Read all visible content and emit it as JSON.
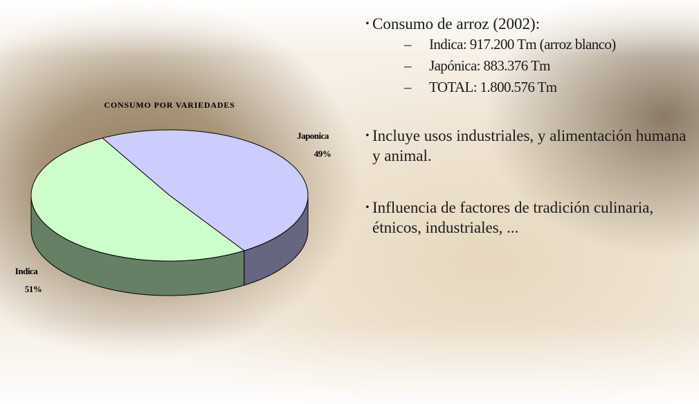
{
  "chart_data": {
    "type": "pie",
    "title": "CONSUMO POR VARIEDADES",
    "categories": [
      "Japonica",
      "Indica"
    ],
    "values": [
      49,
      51
    ],
    "value_labels": [
      "49%",
      "51%"
    ],
    "colors": [
      "#ccccff",
      "#ccffcc"
    ]
  },
  "slide": {
    "bullets": [
      {
        "text": "Consumo de arroz (2002):",
        "sub": [
          "Indica:  917.200 Tm (arroz blanco)",
          "Japónica:  883.376 Tm",
          "TOTAL:  1.800.576 Tm"
        ]
      },
      {
        "text": "Incluye usos industriales, y alimentación humana y animal."
      },
      {
        "text": "Influencia de factores de tradición culinaria, étnicos, industriales, ..."
      }
    ]
  }
}
